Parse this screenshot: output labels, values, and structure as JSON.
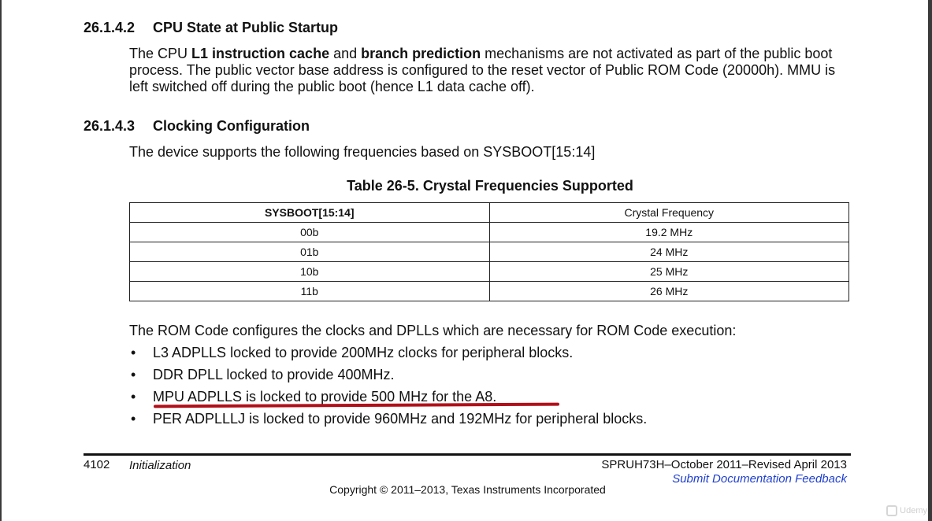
{
  "section1": {
    "number": "26.1.4.2",
    "title": "CPU State at Public Startup",
    "para": {
      "t1": "The CPU ",
      "b1": "L1 instruction cache",
      "t2": " and ",
      "b2": "branch prediction",
      "t3": " mechanisms are not activated as part of the public boot process. The public vector base address is configured to the reset vector of Public ROM Code (20000h). MMU is left switched off during the public boot (hence L1 data cache off)."
    }
  },
  "section2": {
    "number": "26.1.4.3",
    "title": "Clocking Configuration",
    "intro": "The device supports the following frequencies based on SYSBOOT[15:14]"
  },
  "table": {
    "caption": "Table 26-5. Crystal Frequencies Supported",
    "headers": [
      "SYSBOOT[15:14]",
      "Crystal Frequency"
    ],
    "rows": [
      [
        "00b",
        "19.2 MHz"
      ],
      [
        "01b",
        "24 MHz"
      ],
      [
        "10b",
        "25 MHz"
      ],
      [
        "11b",
        "26 MHz"
      ]
    ]
  },
  "rom_intro": "The ROM Code configures the clocks and DPLLs which are necessary for ROM Code execution:",
  "bullets": [
    "L3 ADPLLS locked to provide 200MHz clocks for peripheral blocks.",
    "DDR DPLL locked to provide 400MHz.",
    "MPU ADPLLS is locked to provide 500 MHz for the A8.",
    "PER ADPLLLJ is locked to provide 960MHz and 192MHz for peripheral blocks."
  ],
  "bullet_symbol": "•",
  "highlight_color": "#b0101a",
  "footer": {
    "page_number": "4102",
    "section": "Initialization",
    "doc_id": "SPRUH73H–October 2011–Revised April 2013",
    "feedback_link": "Submit Documentation Feedback",
    "copyright": "Copyright © 2011–2013, Texas Instruments Incorporated",
    "link_color": "#1f3fcf"
  },
  "watermark": "Udemy"
}
